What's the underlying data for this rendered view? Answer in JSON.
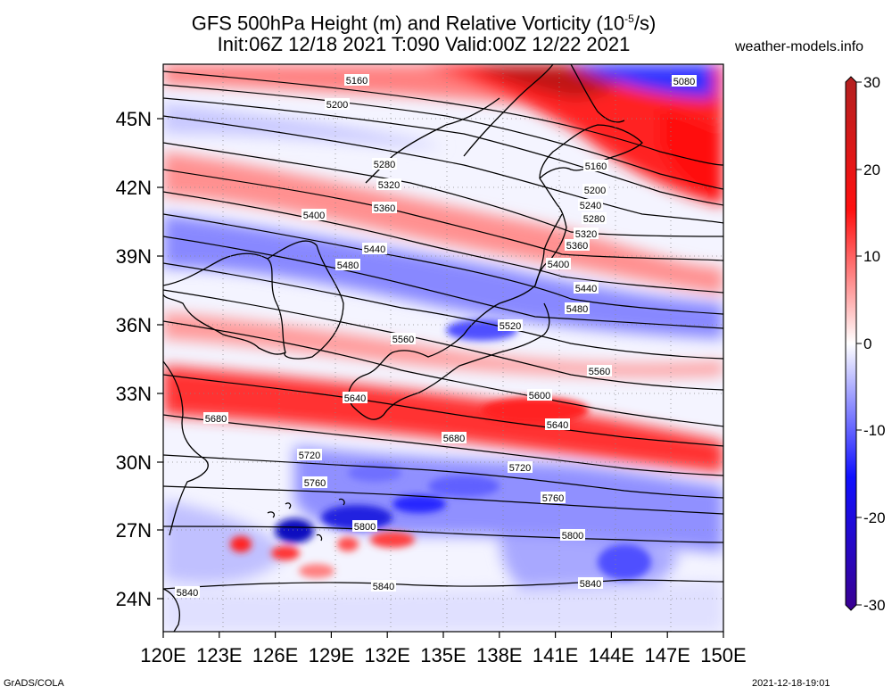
{
  "title": {
    "line1": "GFS 500hPa Height (m) and Relative Vorticity (10",
    "line1_sup": "-5",
    "line1_end": "/s)",
    "line2": "Init:06Z 12/18 2021 T:090 Valid:00Z 12/22 2021"
  },
  "site": "weather-models.info",
  "footer": {
    "left": "GrADS/COLA",
    "right": "2021-12-18-19:01"
  },
  "map": {
    "lat_ticks": [
      "24N",
      "27N",
      "30N",
      "33N",
      "36N",
      "39N",
      "42N",
      "45N"
    ],
    "lon_ticks": [
      "120E",
      "123E",
      "126E",
      "129E",
      "132E",
      "135E",
      "138E",
      "141E",
      "144E",
      "147E",
      "150E"
    ],
    "contours": [
      {
        "value": "5080"
      },
      {
        "value": "5160"
      },
      {
        "value": "5200"
      },
      {
        "value": "5240"
      },
      {
        "value": "5280"
      },
      {
        "value": "5320"
      },
      {
        "value": "5360"
      },
      {
        "value": "5400"
      },
      {
        "value": "5440"
      },
      {
        "value": "5480"
      },
      {
        "value": "5520"
      },
      {
        "value": "5560"
      },
      {
        "value": "5600"
      },
      {
        "value": "5640"
      },
      {
        "value": "5680"
      },
      {
        "value": "5720"
      },
      {
        "value": "5760"
      },
      {
        "value": "5800"
      },
      {
        "value": "5840"
      }
    ]
  },
  "colorbar": {
    "labels": [
      "30",
      "20",
      "10",
      "0",
      "-10",
      "-20",
      "-30"
    ],
    "colors": {
      "top": "#b22020",
      "red": "#ff1010",
      "white": "#ffffff",
      "blue": "#1010ff",
      "bottom": "#3a0090"
    }
  }
}
